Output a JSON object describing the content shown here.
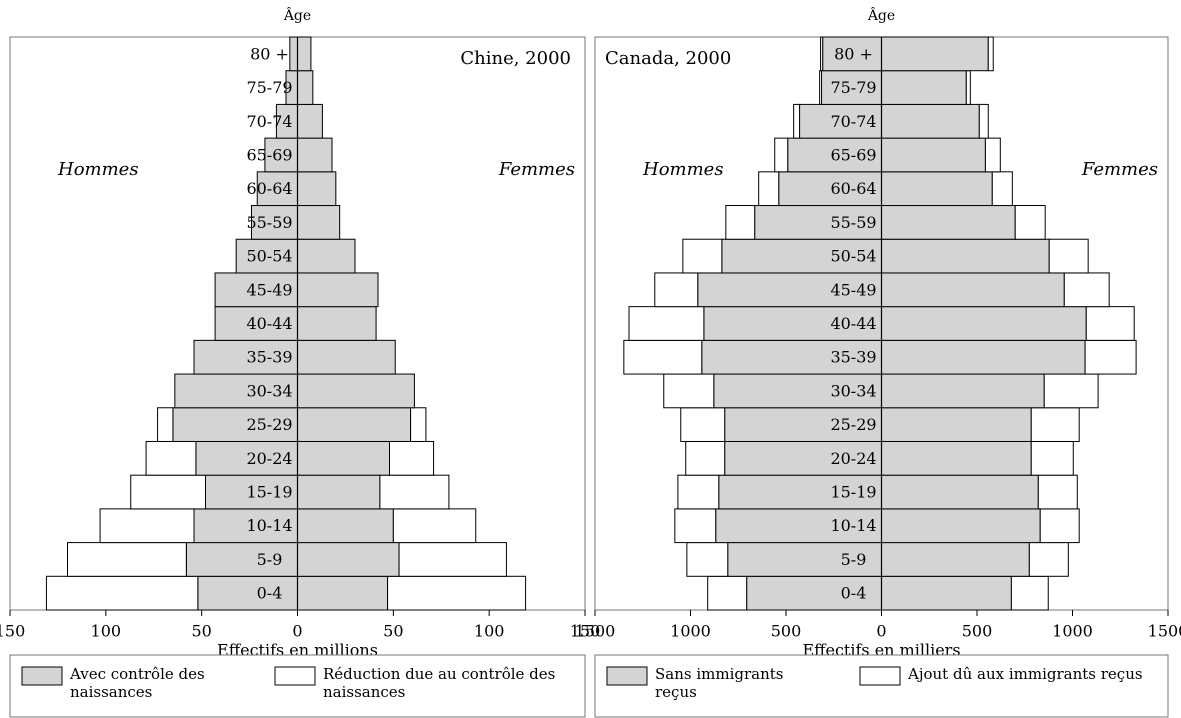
{
  "chart_data": [
    {
      "type": "pyramid",
      "title": "Chine, 2000",
      "y_label": "Âge",
      "x_label": "Effectifs en millions",
      "left_label": "Hommes",
      "right_label": "Femmes",
      "categories": [
        "0-4",
        "5-9",
        "10-14",
        "15-19",
        "20-24",
        "25-29",
        "30-34",
        "35-39",
        "40-44",
        "45-49",
        "50-54",
        "55-59",
        "60-64",
        "65-69",
        "70-74",
        "75-79",
        "80 +"
      ],
      "xlim": [
        -150,
        150
      ],
      "xticks": [
        {
          "value": -150,
          "label": "150"
        },
        {
          "value": -100,
          "label": "100"
        },
        {
          "value": -50,
          "label": "50"
        },
        0,
        50,
        100,
        150
      ],
      "series": [
        {
          "name": "Avec contrôle des naissances",
          "color": "#d4d4d4",
          "left": [
            52,
            58,
            54,
            48,
            53,
            65,
            64,
            54,
            43,
            43,
            32,
            24,
            21,
            17,
            11,
            6,
            4
          ],
          "right": [
            47,
            53,
            50,
            43,
            48,
            59,
            61,
            51,
            41,
            42,
            30,
            22,
            20,
            18,
            13,
            8,
            7
          ]
        },
        {
          "name": "Réduction due au contrôle des naissances",
          "color": "#ffffff",
          "left": [
            79,
            62,
            49,
            39,
            26,
            8,
            0,
            0,
            0,
            0,
            0,
            0,
            0,
            0,
            0,
            0,
            0
          ],
          "right": [
            72,
            56,
            43,
            36,
            23,
            8,
            0,
            0,
            0,
            0,
            0,
            0,
            0,
            0,
            0,
            0,
            0
          ]
        }
      ]
    },
    {
      "type": "pyramid",
      "title": "Canada, 2000",
      "y_label": "Âge",
      "x_label": "Effectifs en milliers",
      "left_label": "Hommes",
      "right_label": "Femmes",
      "categories": [
        "0-4",
        "5-9",
        "10-14",
        "15-19",
        "20-24",
        "25-29",
        "30-34",
        "35-39",
        "40-44",
        "45-49",
        "50-54",
        "55-59",
        "60-64",
        "65-69",
        "70-74",
        "75-79",
        "80 +"
      ],
      "xlim": [
        -1500,
        1500
      ],
      "xticks": [
        {
          "value": -1500,
          "label": "1500"
        },
        {
          "value": -1000,
          "label": "1000"
        },
        {
          "value": -500,
          "label": "500"
        },
        0,
        500,
        1000,
        1500
      ],
      "series": [
        {
          "name": "Sans immigrants reçus",
          "color": "#d4d4d4",
          "left": [
            706,
            805,
            868,
            852,
            821,
            821,
            878,
            941,
            930,
            962,
            836,
            664,
            538,
            491,
            429,
            314,
            308
          ],
          "right": [
            680,
            774,
            831,
            821,
            784,
            784,
            852,
            1066,
            1072,
            957,
            878,
            700,
            580,
            544,
            512,
            444,
            559
          ]
        },
        {
          "name": "Ajout dû aux immigrants reçus",
          "color": "#ffffff",
          "left": [
            204,
            214,
            214,
            214,
            204,
            230,
            262,
            408,
            392,
            225,
            204,
            151,
            105,
            68,
            31,
            10,
            11
          ],
          "right": [
            193,
            204,
            204,
            204,
            220,
            251,
            282,
            267,
            251,
            235,
            204,
            157,
            105,
            78,
            47,
            21,
            26
          ]
        }
      ]
    }
  ]
}
